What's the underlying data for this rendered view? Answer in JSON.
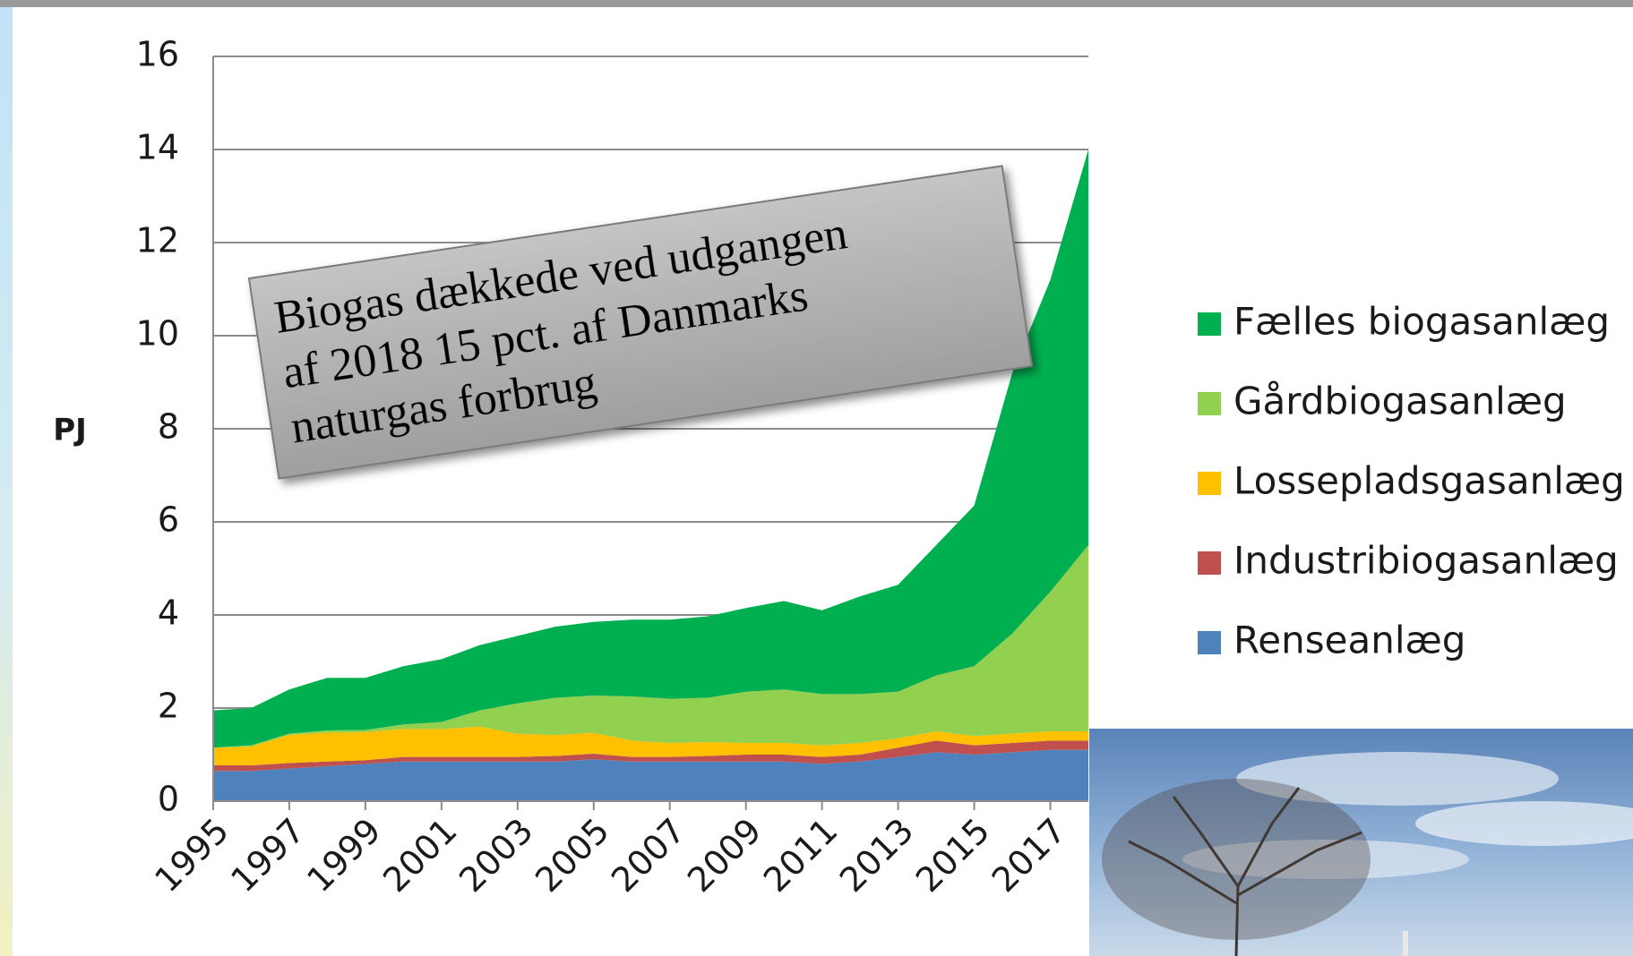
{
  "chart_data": {
    "type": "stacked-area",
    "y_label": "PJ",
    "annotation": [
      "Biogas dækkede ved udgangen",
      "af 2018 15 pct. af Danmarks",
      "naturgas forbrug"
    ],
    "x": [
      1995,
      1996,
      1997,
      1998,
      1999,
      2000,
      2001,
      2002,
      2003,
      2004,
      2005,
      2006,
      2007,
      2008,
      2009,
      2010,
      2011,
      2012,
      2013,
      2014,
      2015,
      2016,
      2017,
      2018
    ],
    "xlim": [
      1995,
      2018
    ],
    "xticks": [
      1995,
      1997,
      1999,
      2001,
      2003,
      2005,
      2007,
      2009,
      2011,
      2013,
      2015,
      2017
    ],
    "ylim": [
      0,
      16
    ],
    "yticks": [
      0,
      2,
      4,
      6,
      8,
      10,
      12,
      14,
      16
    ],
    "grid": true,
    "legend_position": "right",
    "series": [
      {
        "name": "Renseanlæg",
        "color": "#4f81bd",
        "values": [
          0.65,
          0.65,
          0.7,
          0.75,
          0.8,
          0.85,
          0.85,
          0.85,
          0.85,
          0.85,
          0.9,
          0.85,
          0.85,
          0.85,
          0.85,
          0.85,
          0.8,
          0.85,
          0.95,
          1.05,
          1.0,
          1.05,
          1.1,
          1.1
        ]
      },
      {
        "name": "Industribiogasanlæg",
        "color": "#c0504d",
        "values": [
          0.12,
          0.12,
          0.12,
          0.1,
          0.08,
          0.1,
          0.1,
          0.1,
          0.1,
          0.12,
          0.12,
          0.1,
          0.1,
          0.12,
          0.15,
          0.15,
          0.15,
          0.15,
          0.2,
          0.25,
          0.2,
          0.2,
          0.2,
          0.2
        ]
      },
      {
        "name": "Lossepladsgasanlæg",
        "color": "#ffc000",
        "values": [
          0.38,
          0.4,
          0.6,
          0.62,
          0.6,
          0.6,
          0.6,
          0.65,
          0.5,
          0.45,
          0.45,
          0.35,
          0.3,
          0.3,
          0.25,
          0.25,
          0.25,
          0.25,
          0.2,
          0.2,
          0.2,
          0.2,
          0.2,
          0.2
        ]
      },
      {
        "name": "Gårdbiogasanlæg",
        "color": "#92d050",
        "values": [
          0,
          0.03,
          0.03,
          0.05,
          0.05,
          0.1,
          0.15,
          0.35,
          0.65,
          0.8,
          0.8,
          0.95,
          0.95,
          0.95,
          1.1,
          1.15,
          1.1,
          1.05,
          1.0,
          1.2,
          1.5,
          2.15,
          3.0,
          4.0
        ]
      },
      {
        "name": "Fælles biogasanlæg",
        "color": "#00b050",
        "values": [
          0.8,
          0.8,
          0.95,
          1.13,
          1.12,
          1.25,
          1.35,
          1.4,
          1.45,
          1.53,
          1.58,
          1.65,
          1.7,
          1.75,
          1.8,
          1.9,
          1.8,
          2.1,
          2.3,
          2.8,
          3.45,
          5.6,
          6.7,
          8.5
        ]
      }
    ]
  }
}
